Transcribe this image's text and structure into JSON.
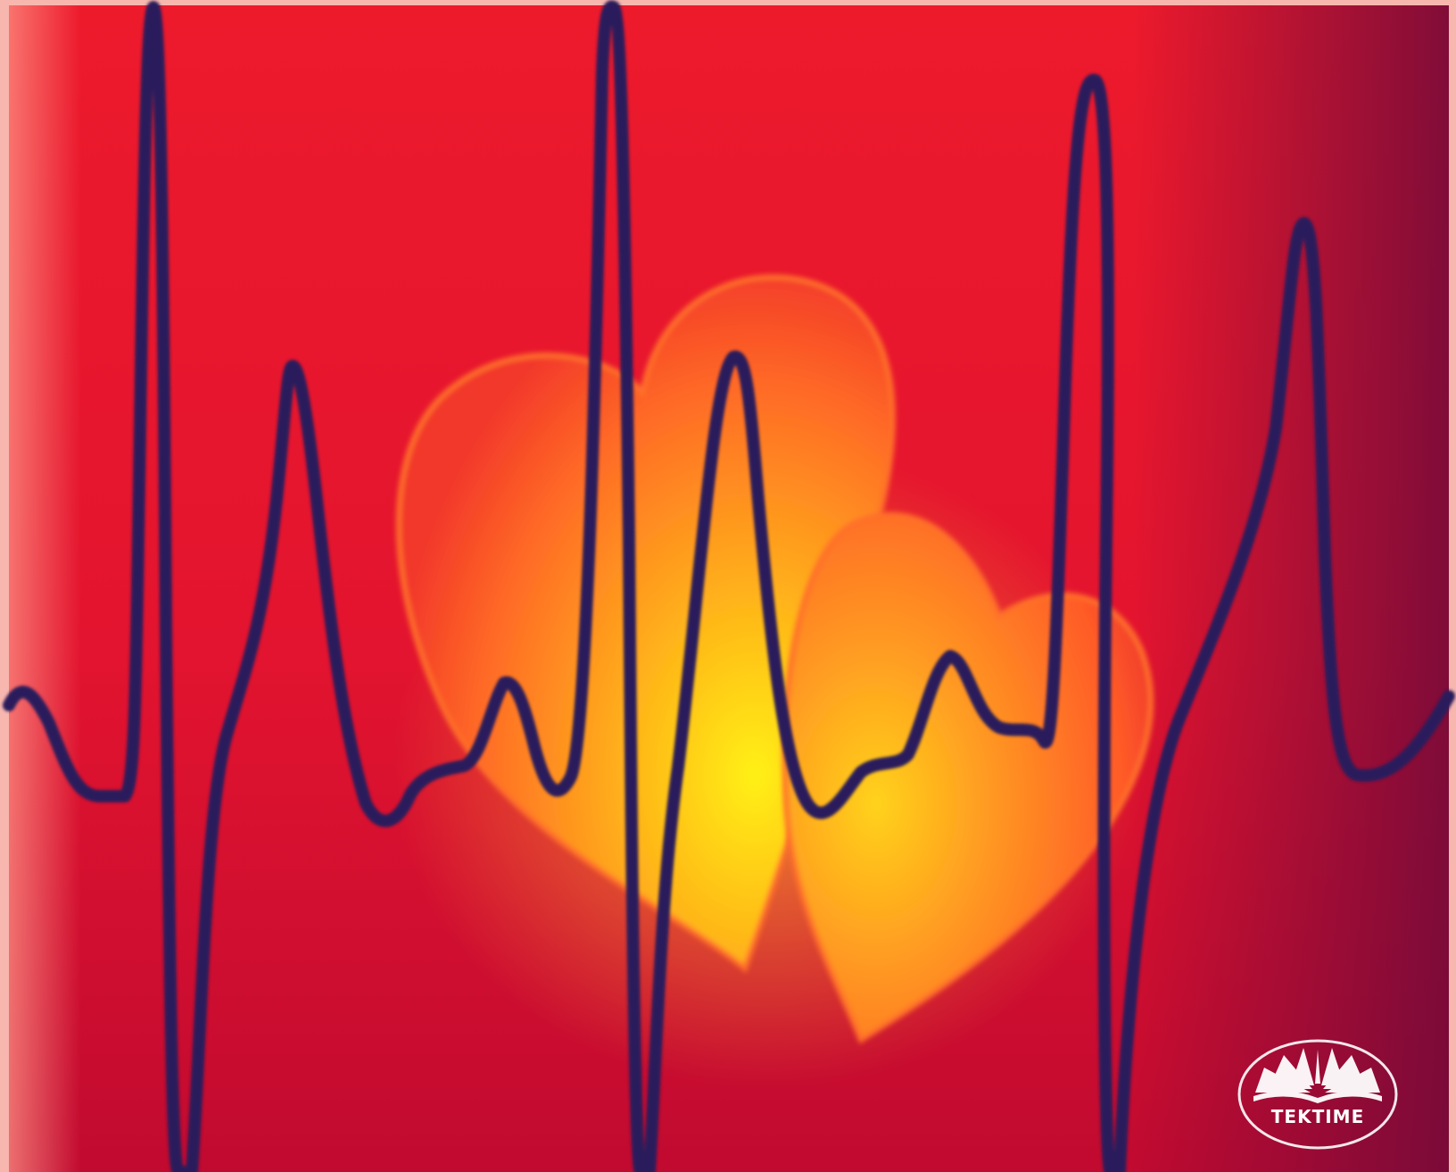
{
  "image": {
    "palette": {
      "background_top": "#ee1b2e",
      "background_bottom": "#c8082f",
      "background_edge_dark": "#6e0a3a",
      "border_light": "#f7b7ae",
      "heart_rim": "#ff7a28",
      "heart_glow": "#fff012",
      "ecg_line": "#2c1a5a"
    },
    "logo": {
      "text": "TEKTIME",
      "icon": "open-book-rays-icon",
      "fill": "#ffffff"
    }
  }
}
